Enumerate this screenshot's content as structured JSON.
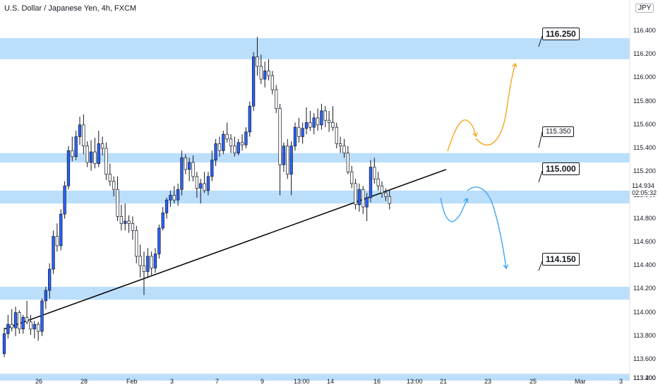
{
  "header": {
    "title": "U.S. Dollar / Japanese Yen, 4h, FXCM",
    "currency": "JPY"
  },
  "price_axis": {
    "ticks": [
      "116.400",
      "116.200",
      "116.000",
      "115.800",
      "115.600",
      "115.400",
      "115.200",
      "115.000",
      "114.800",
      "114.600",
      "114.400",
      "114.200",
      "114.000",
      "113.800",
      "113.600",
      "113.400",
      "113.200"
    ],
    "current_price": "114.934",
    "countdown": "02:05:32"
  },
  "time_axis": {
    "labels": [
      "26",
      "28",
      "Feb",
      "3",
      "7",
      "9",
      "13:00",
      "14",
      "16",
      "13:00",
      "21",
      "23",
      "25",
      "Mar",
      "3"
    ]
  },
  "zones": {
    "z116250": "116.250",
    "z115350": "115.350",
    "z115000": "115.000",
    "z114150": "114.150"
  },
  "colors": {
    "up": "#2962ff",
    "down": "#ffffff",
    "zone": "#bbdefb",
    "trendline": "#000000",
    "arrow_up": "#f6a623",
    "arrow_down": "#42a5f5"
  },
  "chart_data": {
    "type": "candlestick",
    "symbol": "USDJPY",
    "interval": "4h",
    "ylim": [
      113.2,
      116.45
    ],
    "zones": [
      {
        "from": 116.16,
        "to": 116.34,
        "label": "116.250"
      },
      {
        "from": 115.28,
        "to": 115.36,
        "label": "115.350"
      },
      {
        "from": 114.93,
        "to": 115.04,
        "label": "115.000"
      },
      {
        "from": 114.11,
        "to": 114.22,
        "label": "114.150"
      },
      {
        "from": 113.42,
        "to": 113.48,
        "label": ""
      }
    ],
    "trendline": {
      "from": {
        "bar": 0,
        "price": 113.86
      },
      "to": {
        "bar": 117,
        "price": 115.22
      }
    },
    "candles": [
      [
        113.65,
        113.87,
        113.62,
        113.82
      ],
      [
        113.82,
        113.98,
        113.78,
        113.9
      ],
      [
        113.9,
        114.03,
        113.84,
        113.87
      ],
      [
        113.87,
        114.05,
        113.8,
        114.0
      ],
      [
        114.0,
        114.02,
        113.82,
        113.86
      ],
      [
        113.86,
        113.98,
        113.82,
        113.96
      ],
      [
        113.96,
        114.1,
        113.9,
        113.92
      ],
      [
        113.92,
        113.98,
        113.81,
        113.86
      ],
      [
        113.86,
        113.93,
        113.78,
        113.9
      ],
      [
        113.9,
        113.92,
        113.76,
        113.84
      ],
      [
        113.84,
        114.12,
        113.8,
        114.1
      ],
      [
        114.1,
        114.22,
        114.03,
        114.19
      ],
      [
        114.19,
        114.42,
        114.12,
        114.37
      ],
      [
        114.37,
        114.7,
        114.33,
        114.65
      ],
      [
        114.65,
        114.76,
        114.52,
        114.57
      ],
      [
        114.57,
        114.88,
        114.53,
        114.84
      ],
      [
        114.84,
        115.12,
        114.8,
        115.08
      ],
      [
        115.08,
        115.42,
        115.05,
        115.38
      ],
      [
        115.38,
        115.5,
        115.29,
        115.33
      ],
      [
        115.33,
        115.55,
        115.3,
        115.5
      ],
      [
        115.5,
        115.67,
        115.43,
        115.6
      ],
      [
        115.6,
        115.69,
        115.35,
        115.42
      ],
      [
        115.42,
        115.46,
        115.24,
        115.28
      ],
      [
        115.28,
        115.47,
        115.21,
        115.37
      ],
      [
        115.37,
        115.49,
        115.23,
        115.27
      ],
      [
        115.27,
        115.55,
        115.24,
        115.44
      ],
      [
        115.44,
        115.5,
        115.34,
        115.4
      ],
      [
        115.4,
        115.45,
        115.13,
        115.18
      ],
      [
        115.18,
        115.27,
        115.08,
        115.12
      ],
      [
        115.12,
        115.16,
        114.99,
        115.05
      ],
      [
        115.05,
        115.16,
        114.78,
        114.82
      ],
      [
        114.82,
        114.92,
        114.7,
        114.76
      ],
      [
        114.76,
        114.93,
        114.7,
        114.78
      ],
      [
        114.78,
        114.83,
        114.68,
        114.76
      ],
      [
        114.76,
        114.82,
        114.62,
        114.7
      ],
      [
        114.7,
        114.74,
        114.42,
        114.48
      ],
      [
        114.48,
        114.58,
        114.3,
        114.4
      ],
      [
        114.4,
        114.52,
        114.15,
        114.35
      ],
      [
        114.35,
        114.55,
        114.3,
        114.48
      ],
      [
        114.48,
        114.52,
        114.32,
        114.38
      ],
      [
        114.38,
        114.55,
        114.34,
        114.5
      ],
      [
        114.5,
        114.75,
        114.46,
        114.72
      ],
      [
        114.72,
        114.9,
        114.7,
        114.85
      ],
      [
        114.85,
        114.98,
        114.8,
        114.96
      ],
      [
        114.96,
        115.04,
        114.9,
        115.0
      ],
      [
        115.0,
        115.08,
        114.93,
        114.96
      ],
      [
        114.96,
        115.1,
        114.91,
        115.05
      ],
      [
        115.05,
        115.38,
        115.0,
        115.32
      ],
      [
        115.32,
        115.35,
        115.18,
        115.22
      ],
      [
        115.22,
        115.32,
        115.12,
        115.28
      ],
      [
        115.28,
        115.34,
        115.12,
        115.16
      ],
      [
        115.16,
        115.2,
        114.98,
        115.06
      ],
      [
        115.06,
        115.14,
        114.93,
        115.1
      ],
      [
        115.1,
        115.2,
        115.02,
        115.04
      ],
      [
        115.04,
        115.2,
        115.0,
        115.16
      ],
      [
        115.16,
        115.38,
        115.12,
        115.3
      ],
      [
        115.3,
        115.48,
        115.25,
        115.44
      ],
      [
        115.44,
        115.5,
        115.33,
        115.38
      ],
      [
        115.38,
        115.55,
        115.35,
        115.52
      ],
      [
        115.52,
        115.62,
        115.45,
        115.48
      ],
      [
        115.48,
        115.52,
        115.36,
        115.42
      ],
      [
        115.42,
        115.5,
        115.33,
        115.36
      ],
      [
        115.36,
        115.48,
        115.34,
        115.45
      ],
      [
        115.45,
        115.52,
        115.38,
        115.43
      ],
      [
        115.43,
        115.58,
        115.4,
        115.54
      ],
      [
        115.54,
        115.8,
        115.5,
        115.76
      ],
      [
        115.76,
        116.22,
        115.72,
        116.18
      ],
      [
        116.18,
        116.35,
        116.02,
        116.1
      ],
      [
        116.1,
        116.2,
        115.95,
        115.99
      ],
      [
        115.99,
        116.14,
        115.92,
        116.06
      ],
      [
        116.06,
        116.16,
        115.98,
        116.02
      ],
      [
        116.02,
        116.06,
        115.86,
        115.9
      ],
      [
        115.9,
        115.94,
        115.7,
        115.74
      ],
      [
        115.74,
        115.78,
        115.0,
        115.26
      ],
      [
        115.26,
        115.45,
        115.2,
        115.42
      ],
      [
        115.42,
        115.48,
        115.14,
        115.18
      ],
      [
        115.18,
        115.46,
        115.0,
        115.42
      ],
      [
        115.42,
        115.62,
        115.38,
        115.58
      ],
      [
        115.58,
        115.66,
        115.45,
        115.5
      ],
      [
        115.5,
        115.62,
        115.44,
        115.57
      ],
      [
        115.57,
        115.75,
        115.52,
        115.62
      ],
      [
        115.62,
        115.72,
        115.55,
        115.58
      ],
      [
        115.58,
        115.7,
        115.52,
        115.66
      ],
      [
        115.66,
        115.74,
        115.55,
        115.6
      ],
      [
        115.6,
        115.78,
        115.56,
        115.72
      ],
      [
        115.72,
        115.76,
        115.58,
        115.64
      ],
      [
        115.64,
        115.72,
        115.54,
        115.62
      ],
      [
        115.62,
        115.76,
        115.55,
        115.58
      ],
      [
        115.58,
        115.62,
        115.4,
        115.44
      ],
      [
        115.44,
        115.5,
        115.36,
        115.42
      ],
      [
        115.42,
        115.48,
        115.32,
        115.36
      ],
      [
        115.36,
        115.42,
        115.18,
        115.2
      ],
      [
        115.2,
        115.25,
        115.06,
        115.1
      ],
      [
        115.1,
        115.14,
        114.88,
        114.92
      ],
      [
        114.92,
        115.1,
        114.86,
        115.05
      ],
      [
        115.05,
        115.08,
        114.84,
        114.9
      ],
      [
        114.9,
        115.02,
        114.78,
        114.98
      ],
      [
        114.98,
        115.3,
        114.94,
        115.24
      ],
      [
        115.24,
        115.32,
        115.1,
        115.14
      ],
      [
        115.14,
        115.2,
        115.04,
        115.08
      ],
      [
        115.08,
        115.12,
        114.98,
        115.02
      ],
      [
        115.02,
        115.06,
        114.95,
        114.99
      ],
      [
        114.99,
        115.05,
        114.88,
        114.93
      ]
    ],
    "x_labels": [
      "26",
      "28",
      "Feb",
      "3",
      "7",
      "9",
      "13:00",
      "14",
      "16",
      "13:00",
      "21",
      "23",
      "25",
      "Mar",
      "3"
    ]
  }
}
